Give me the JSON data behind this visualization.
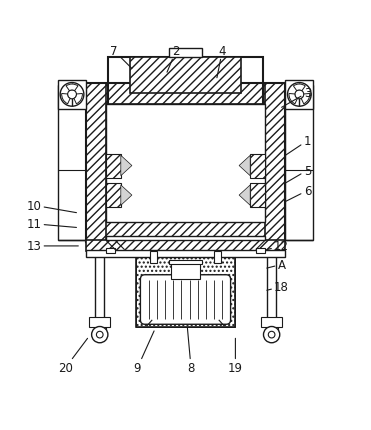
{
  "background_color": "#ffffff",
  "line_color": "#1a1a1a",
  "figsize": [
    3.71,
    4.31
  ],
  "dpi": 100,
  "labels": {
    "7": [
      0.305,
      0.945,
      0.355,
      0.895
    ],
    "2": [
      0.475,
      0.945,
      0.45,
      0.885
    ],
    "4": [
      0.6,
      0.945,
      0.585,
      0.87
    ],
    "3": [
      0.83,
      0.83,
      0.76,
      0.79
    ],
    "1": [
      0.83,
      0.7,
      0.77,
      0.66
    ],
    "5": [
      0.83,
      0.62,
      0.77,
      0.585
    ],
    "6": [
      0.83,
      0.565,
      0.77,
      0.535
    ],
    "10": [
      0.09,
      0.525,
      0.205,
      0.505
    ],
    "11": [
      0.09,
      0.475,
      0.205,
      0.465
    ],
    "13": [
      0.09,
      0.415,
      0.21,
      0.415
    ],
    "12": [
      0.76,
      0.415,
      0.72,
      0.405
    ],
    "A": [
      0.76,
      0.365,
      0.72,
      0.355
    ],
    "18": [
      0.76,
      0.305,
      0.72,
      0.295
    ],
    "8": [
      0.515,
      0.085,
      0.505,
      0.195
    ],
    "9": [
      0.37,
      0.085,
      0.415,
      0.185
    ],
    "19": [
      0.635,
      0.085,
      0.635,
      0.165
    ],
    "20": [
      0.175,
      0.085,
      0.235,
      0.165
    ]
  }
}
